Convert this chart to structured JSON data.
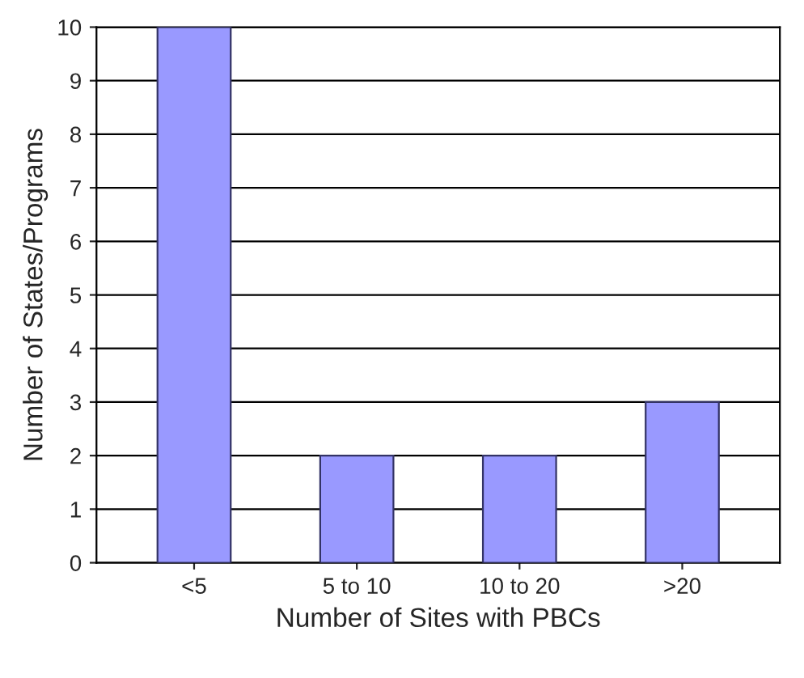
{
  "chart_data": {
    "type": "bar",
    "xlabel": "Number of Sites with PBCs",
    "ylabel": "Number of States/Programs",
    "categories": [
      "<5",
      "5 to 10",
      "10 to 20",
      ">20"
    ],
    "values": [
      10,
      2,
      2,
      3
    ],
    "color": "#9999ff",
    "ylim": [
      0,
      10
    ],
    "yticks": [
      0,
      1,
      2,
      3,
      4,
      5,
      6,
      7,
      8,
      9,
      10
    ],
    "grid": "y"
  }
}
